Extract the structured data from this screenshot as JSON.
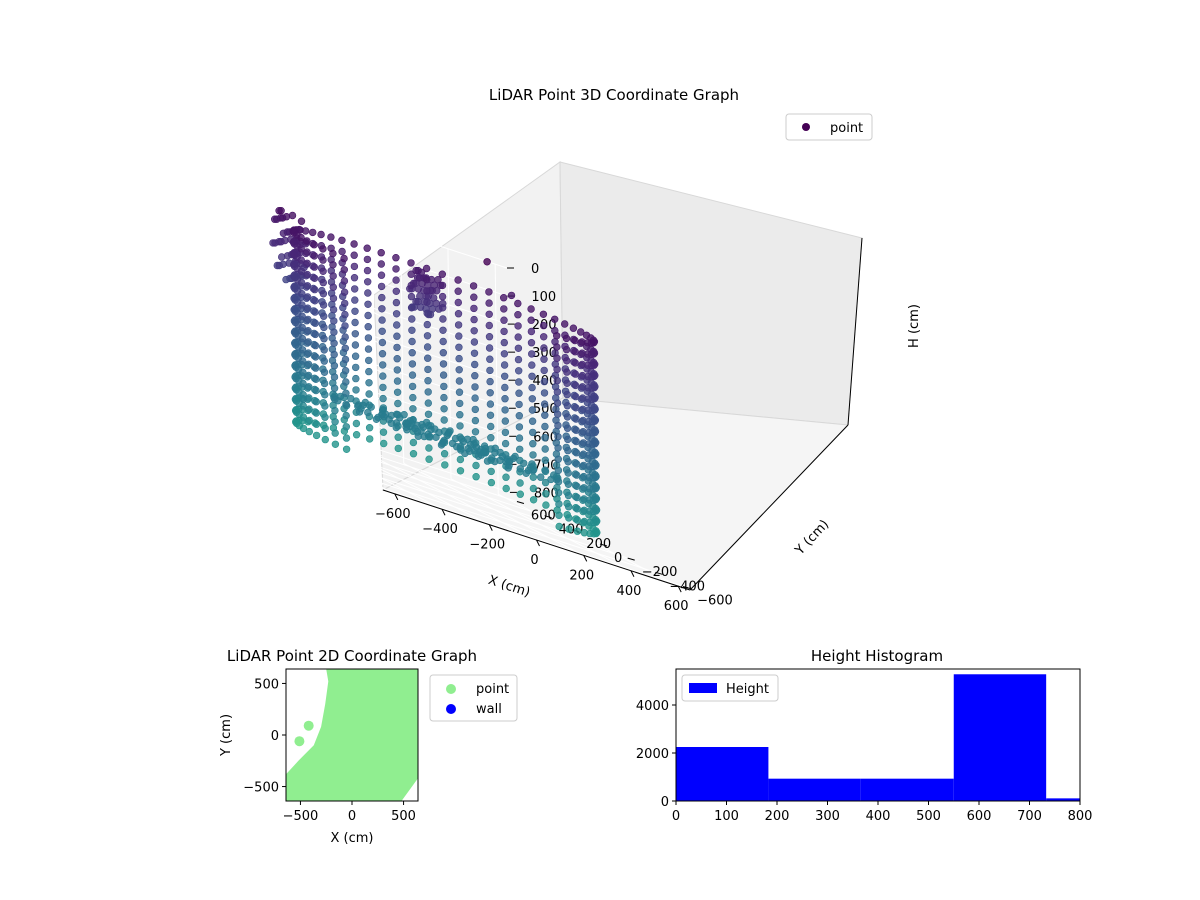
{
  "chart_data": [
    {
      "type": "scatter3d",
      "title": "LiDAR Point 3D Coordinate Graph",
      "xlabel": "X (cm)",
      "ylabel": "Y (cm)",
      "zlabel": "H (cm)",
      "x_ticks": [
        -600,
        -400,
        -200,
        0,
        200,
        400,
        600
      ],
      "y_ticks": [
        -600,
        -400,
        -200,
        0,
        200,
        400,
        600
      ],
      "z_ticks": [
        0,
        100,
        200,
        300,
        400,
        500,
        600,
        700,
        800
      ],
      "xlim": [
        -650,
        650
      ],
      "ylim": [
        -650,
        650
      ],
      "zlim": [
        0,
        820
      ],
      "z_inverted": true,
      "legend": [
        {
          "name": "point",
          "color": "#440154"
        }
      ],
      "legend_position": "top-right",
      "colormap": "viridis",
      "grid": true,
      "cylinder_wall": {
        "radius_x": 560,
        "radius_y": 520,
        "angle_deg_range": [
          -70,
          200
        ],
        "h_range": [
          80,
          780
        ]
      },
      "clusters": [
        {
          "x": -300,
          "y": 600,
          "h_range": [
            50,
            300
          ]
        },
        {
          "x": 250,
          "y": 550,
          "h_range": [
            100,
            250
          ]
        }
      ],
      "outliers": [
        {
          "x": 650,
          "y": 620,
          "h": 90
        },
        {
          "x": 560,
          "y": 640,
          "h": 0
        },
        {
          "x": -650,
          "y": -80,
          "h": 640
        }
      ]
    },
    {
      "type": "scatter",
      "title": "LiDAR Point 2D Coordinate Graph",
      "xlabel": "X (cm)",
      "ylabel": "Y (cm)",
      "x_ticks": [
        -500,
        0,
        500
      ],
      "y_ticks": [
        -500,
        0,
        500
      ],
      "xlim": [
        -640,
        640
      ],
      "ylim": [
        -640,
        640
      ],
      "legend": [
        {
          "name": "point",
          "color": "#90ee90"
        },
        {
          "name": "wall",
          "color": "#0000ff"
        }
      ],
      "legend_position": "outside-right",
      "point_region": [
        [
          -250,
          640
        ],
        [
          640,
          640
        ],
        [
          640,
          -420
        ],
        [
          480,
          -640
        ],
        [
          -640,
          -640
        ],
        [
          -640,
          -380
        ],
        [
          -520,
          -250
        ],
        [
          -370,
          -100
        ],
        [
          -300,
          80
        ],
        [
          -260,
          300
        ],
        [
          -230,
          520
        ]
      ],
      "points": [
        {
          "x": -510,
          "y": -60
        },
        {
          "x": -420,
          "y": 90
        }
      ]
    },
    {
      "type": "histogram",
      "title": "Height Histogram",
      "xlabel": "",
      "ylabel": "",
      "x_ticks": [
        0,
        100,
        200,
        300,
        400,
        500,
        600,
        700,
        800
      ],
      "y_ticks": [
        0,
        2000,
        4000
      ],
      "xlim": [
        0,
        800
      ],
      "ylim": [
        0,
        5500
      ],
      "legend": [
        {
          "name": "Height",
          "color": "#0000ff"
        }
      ],
      "legend_position": "top-left",
      "bins": [
        {
          "start": 0,
          "end": 183,
          "count": 2250
        },
        {
          "start": 183,
          "end": 366,
          "count": 930
        },
        {
          "start": 366,
          "end": 550,
          "count": 930
        },
        {
          "start": 550,
          "end": 733,
          "count": 5280
        },
        {
          "start": 733,
          "end": 800,
          "count": 110
        }
      ]
    }
  ]
}
